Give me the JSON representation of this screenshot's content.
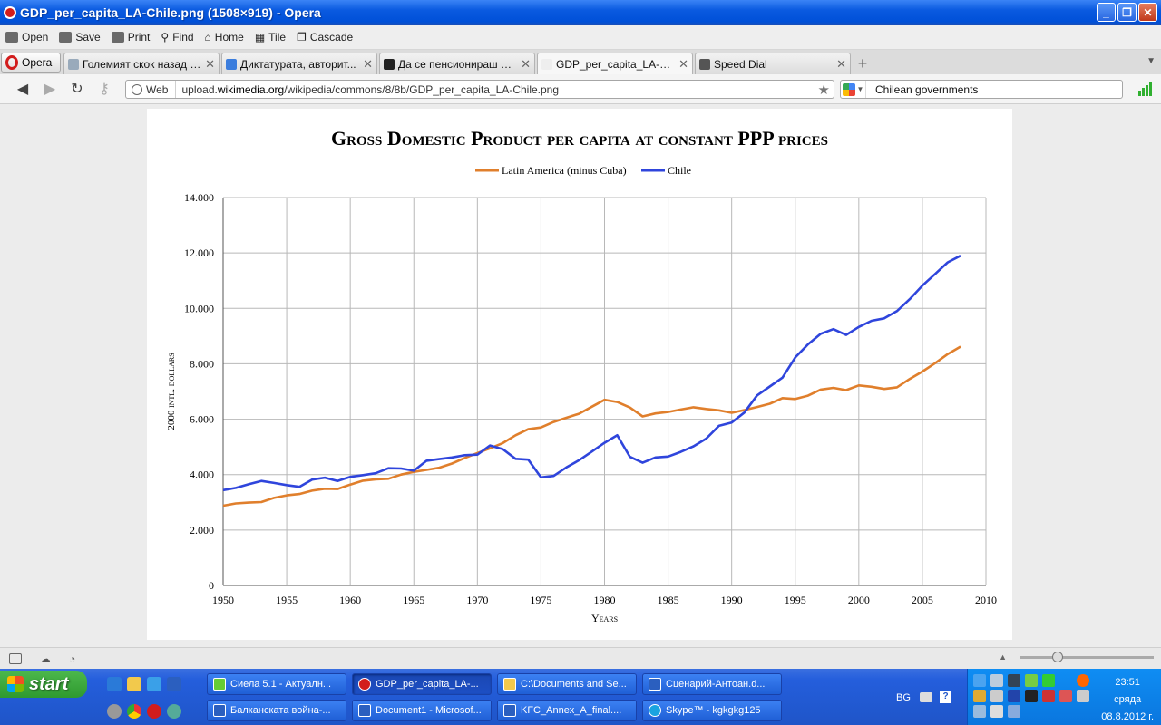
{
  "window": {
    "title": "GDP_per_capita_LA-Chile.png (1508×919) - Opera"
  },
  "toolbar": {
    "open": "Open",
    "save": "Save",
    "print": "Print",
    "find": "Find",
    "home": "Home",
    "tile": "Tile",
    "cascade": "Cascade"
  },
  "tabs": {
    "menu_label": "Opera",
    "items": [
      {
        "label": "Големият скок назад - ..."
      },
      {
        "label": "Диктатурата, авторит..."
      },
      {
        "label": "Да се пенсионираш в Ч..."
      },
      {
        "label": "GDP_per_capita_LA-Chil..."
      },
      {
        "label": "Speed Dial"
      }
    ]
  },
  "address": {
    "badge": "Web",
    "url_prefix": "upload.",
    "url_domain": "wikimedia.org",
    "url_path": "/wikipedia/commons/8/8b/GDP_per_capita_LA-Chile.png",
    "search_query": "Chilean governments"
  },
  "chart_data": {
    "type": "line",
    "title": "Gross Domestic Product per capita at constant PPP prices",
    "xlabel": "Years",
    "ylabel": "2000 intl. dollars",
    "xlim": [
      1950,
      2010
    ],
    "ylim": [
      0,
      14000
    ],
    "x_ticks": [
      "1950",
      "1955",
      "1960",
      "1965",
      "1970",
      "1975",
      "1980",
      "1985",
      "1990",
      "1995",
      "2000",
      "2005",
      "2010"
    ],
    "y_ticks": [
      "0",
      "2.000",
      "4.000",
      "6.000",
      "8.000",
      "10.000",
      "12.000",
      "14.000"
    ],
    "grid": true,
    "legend": "top-center",
    "x": [
      1950,
      1951,
      1952,
      1953,
      1954,
      1955,
      1956,
      1957,
      1958,
      1959,
      1960,
      1961,
      1962,
      1963,
      1964,
      1965,
      1966,
      1967,
      1968,
      1969,
      1970,
      1971,
      1972,
      1973,
      1974,
      1975,
      1976,
      1977,
      1978,
      1979,
      1980,
      1981,
      1982,
      1983,
      1984,
      1985,
      1986,
      1987,
      1988,
      1989,
      1990,
      1991,
      1992,
      1993,
      1994,
      1995,
      1996,
      1997,
      1998,
      1999,
      2000,
      2001,
      2002,
      2003,
      2004,
      2005,
      2006,
      2007,
      2008
    ],
    "series": [
      {
        "name": "Latin America (minus Cuba)",
        "color": "#e07f2c",
        "values": [
          2880,
          2960,
          2990,
          3010,
          3160,
          3250,
          3300,
          3420,
          3490,
          3480,
          3640,
          3780,
          3830,
          3850,
          4000,
          4100,
          4170,
          4250,
          4400,
          4600,
          4780,
          4950,
          5140,
          5420,
          5640,
          5700,
          5900,
          6050,
          6200,
          6450,
          6700,
          6620,
          6420,
          6100,
          6210,
          6260,
          6350,
          6430,
          6370,
          6320,
          6230,
          6330,
          6440,
          6560,
          6760,
          6730,
          6850,
          7070,
          7130,
          7050,
          7220,
          7170,
          7090,
          7150,
          7450,
          7720,
          8020,
          8350,
          8620
        ]
      },
      {
        "name": "Chile",
        "color": "#2f45dc",
        "values": [
          3440,
          3520,
          3650,
          3770,
          3700,
          3620,
          3560,
          3820,
          3890,
          3770,
          3920,
          3980,
          4050,
          4230,
          4220,
          4140,
          4500,
          4560,
          4620,
          4700,
          4720,
          5050,
          4920,
          4570,
          4540,
          3900,
          3950,
          4260,
          4520,
          4830,
          5150,
          5420,
          4640,
          4430,
          4620,
          4650,
          4820,
          5020,
          5300,
          5760,
          5880,
          6240,
          6860,
          7180,
          7500,
          8230,
          8700,
          9080,
          9250,
          9040,
          9330,
          9550,
          9640,
          9900,
          10330,
          10820,
          11240,
          11660,
          11900
        ]
      }
    ]
  },
  "statusbar": {},
  "taskbar": {
    "start_label": "start",
    "tasks_row1": [
      "Сиела 5.1 - Актуалн...",
      "GDP_per_capita_LA-...",
      "C:\\Documents and Se...",
      "Сценарий-Антоан.d..."
    ],
    "tasks_row2": [
      "Балканската война-...",
      "Document1 - Microsof...",
      "KFC_Annex_A_final....",
      "Skype™ - kgkgkg125"
    ],
    "lang": "BG",
    "time": "23:51",
    "day": "сряда",
    "date": "08.8.2012 г."
  }
}
